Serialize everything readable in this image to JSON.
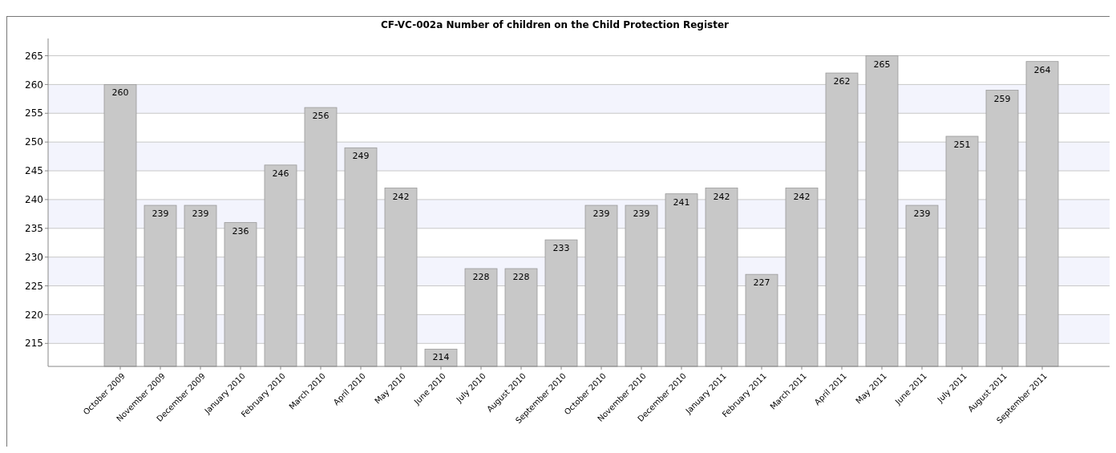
{
  "chart_data": {
    "type": "bar",
    "title": "CF-VC-002a Number of children on the Child Protection Register",
    "categories": [
      "October 2009",
      "November 2009",
      "December 2009",
      "January 2010",
      "February 2010",
      "March 2010",
      "April 2010",
      "May 2010",
      "June 2010",
      "July 2010",
      "August 2010",
      "September 2010",
      "October 2010",
      "November 2010",
      "December 2010",
      "January 2011",
      "February 2011",
      "March 2011",
      "April 2011",
      "May 2011",
      "June 2011",
      "July 2011",
      "August 2011",
      "September 2011"
    ],
    "values": [
      260,
      239,
      239,
      236,
      246,
      256,
      249,
      242,
      214,
      228,
      228,
      233,
      239,
      239,
      241,
      242,
      227,
      242,
      262,
      265,
      239,
      251,
      259,
      264
    ],
    "color": "#c8c8c8",
    "ylim": [
      211,
      268
    ],
    "yticks": [
      215,
      220,
      225,
      230,
      235,
      240,
      245,
      250,
      255,
      260,
      265
    ],
    "grid": "y",
    "data_labels": true
  }
}
